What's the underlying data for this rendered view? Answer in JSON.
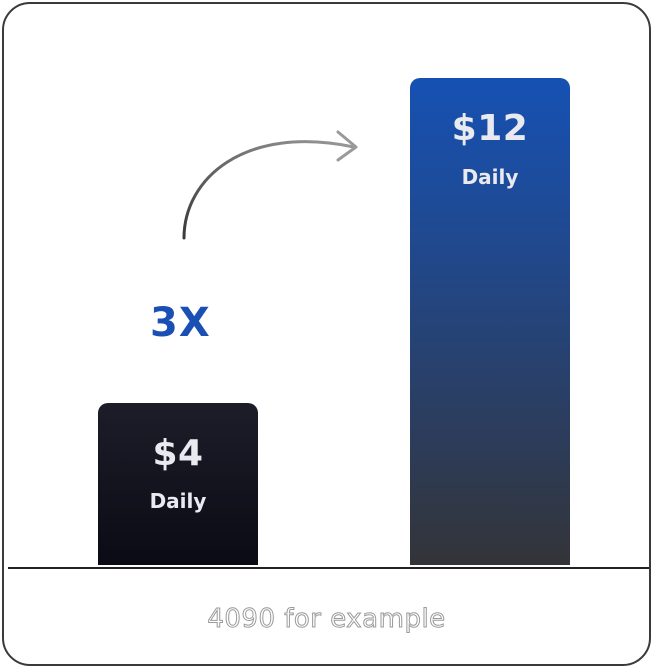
{
  "chart_data": {
    "type": "bar",
    "categories": [
      "$4 Daily",
      "$12 Daily"
    ],
    "values": [
      4,
      12
    ],
    "bars": [
      {
        "value_label": "$4",
        "unit_label": "Daily",
        "color": "#12121e"
      },
      {
        "value_label": "$12",
        "unit_label": "Daily",
        "color": "#1651b3"
      }
    ],
    "annotation": "3X",
    "annotation_color": "#1a4fb4",
    "ylim": [
      0,
      12.5
    ]
  },
  "caption": "4090 for example"
}
